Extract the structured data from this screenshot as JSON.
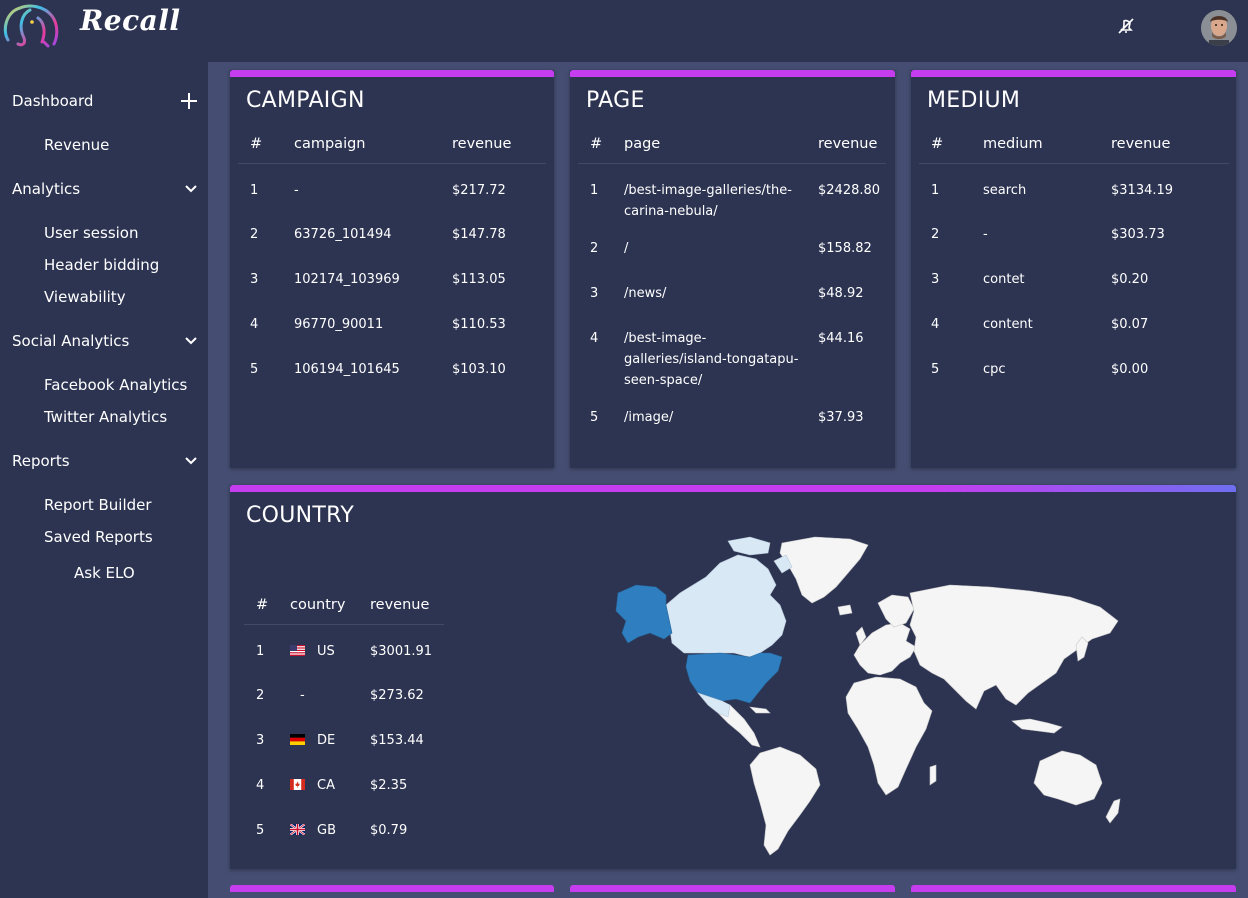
{
  "app": {
    "name": "Recall"
  },
  "sidebar": {
    "dashboard": "Dashboard",
    "revenue": "Revenue",
    "analytics": "Analytics",
    "user_session": "User session",
    "header_bidding": "Header bidding",
    "viewability": "Viewability",
    "social_analytics": "Social Analytics",
    "facebook_analytics": "Facebook Analytics",
    "twitter_analytics": "Twitter Analytics",
    "reports": "Reports",
    "report_builder": "Report Builder",
    "saved_reports": "Saved Reports",
    "ask_elo": "Ask ELO"
  },
  "campaign": {
    "title": "CAMPAIGN",
    "headers": [
      "#",
      "campaign",
      "revenue"
    ],
    "rows": [
      [
        "1",
        "-",
        "$217.72"
      ],
      [
        "2",
        "63726_101494",
        "$147.78"
      ],
      [
        "3",
        "102174_103969",
        "$113.05"
      ],
      [
        "4",
        "96770_90011",
        "$110.53"
      ],
      [
        "5",
        "106194_101645",
        "$103.10"
      ]
    ]
  },
  "page": {
    "title": "PAGE",
    "headers": [
      "#",
      "page",
      "revenue"
    ],
    "rows": [
      [
        "1",
        "/best-image-galleries/the-carina-nebula/",
        "$2428.80"
      ],
      [
        "2",
        "/",
        "$158.82"
      ],
      [
        "3",
        "/news/",
        "$48.92"
      ],
      [
        "4",
        "/best-image-galleries/island-tongatapu-seen-space/",
        "$44.16"
      ],
      [
        "5",
        "/image/",
        "$37.93"
      ]
    ]
  },
  "medium": {
    "title": "MEDIUM",
    "headers": [
      "#",
      "medium",
      "revenue"
    ],
    "rows": [
      [
        "1",
        "search",
        "$3134.19"
      ],
      [
        "2",
        "-",
        "$303.73"
      ],
      [
        "3",
        "contet",
        "$0.20"
      ],
      [
        "4",
        "content",
        "$0.07"
      ],
      [
        "5",
        "cpc",
        "$0.00"
      ]
    ]
  },
  "country": {
    "title": "COUNTRY",
    "headers": [
      "#",
      "country",
      "revenue"
    ],
    "rows": [
      [
        "1",
        "US",
        "$3001.91"
      ],
      [
        "2",
        "-",
        "$273.62"
      ],
      [
        "3",
        "DE",
        "$153.44"
      ],
      [
        "4",
        "CA",
        "$2.35"
      ],
      [
        "5",
        "GB",
        "$0.79"
      ]
    ]
  },
  "colors": {
    "accent": "#c63df0",
    "background": "#2d3452",
    "content_bg": "#454e72",
    "map_highlight_strong": "#2f7fc0",
    "map_highlight_light": "#d8e8f5",
    "map_land": "#f5f5f5"
  }
}
